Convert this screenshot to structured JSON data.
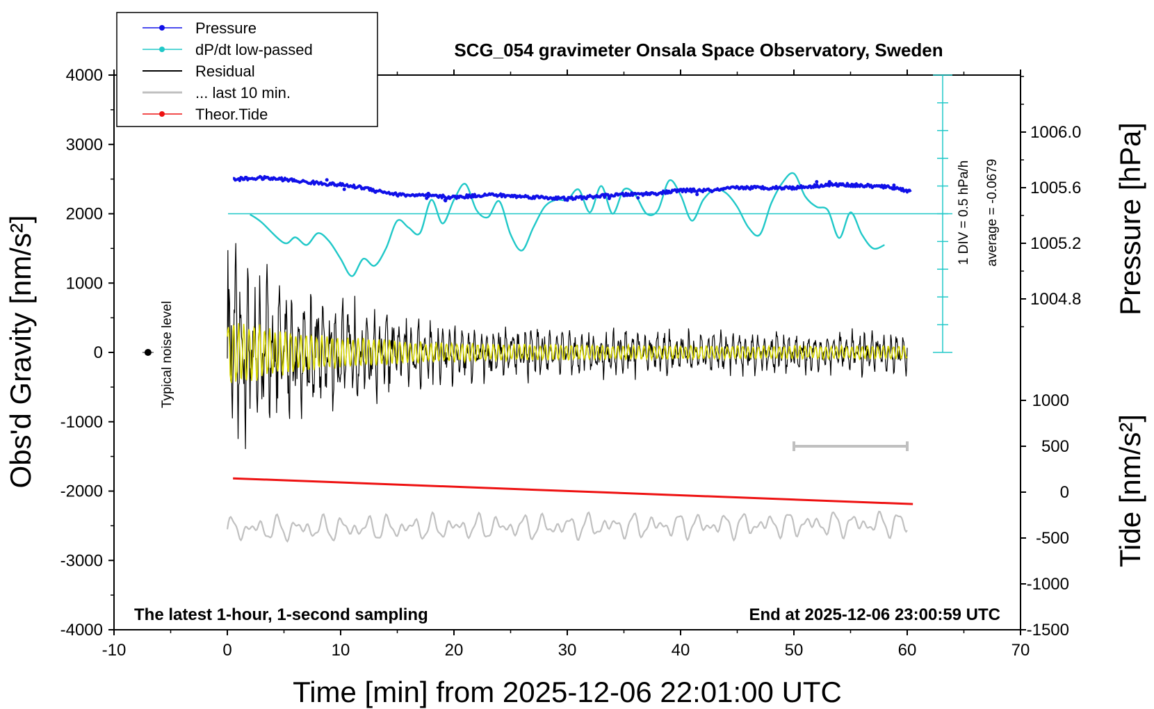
{
  "chart_data": {
    "type": "line",
    "title": "SCG_054 gravimeter Onsala Space Observatory, Sweden",
    "xlabel": "Time [min] from 2025-12-06 22:01:00 UTC",
    "ylabel_left": "Obs'd Gravity [nm/s²]",
    "ylabel_right_pressure": "Pressure [hPa]",
    "ylabel_right_tide": "Tide [nm/s²]",
    "xlim": [
      -10,
      70
    ],
    "ylim_gravity": [
      -4000,
      4000
    ],
    "ylim_pressure_visible": [
      1004.6,
      1006.4
    ],
    "ylim_tide": [
      -1500,
      1500
    ],
    "x_ticks": [
      "-10",
      "0",
      "10",
      "20",
      "30",
      "40",
      "50",
      "60",
      "70"
    ],
    "gravity_ticks": [
      "4000",
      "3000",
      "2000",
      "1000",
      "0",
      "-1000",
      "-2000",
      "-3000",
      "-4000"
    ],
    "pressure_ticks": [
      "1006.0",
      "1005.6",
      "1005.2",
      "1004.8"
    ],
    "tide_ticks": [
      "1000",
      "500",
      "0",
      "-500",
      "-1000",
      "-1500"
    ],
    "legend_position": "top-left",
    "legend": [
      {
        "name": "Pressure",
        "color": "#1010e8",
        "marker": true
      },
      {
        "name": "dP/dt low-passed",
        "color": "#20c8c8",
        "marker": true
      },
      {
        "name": "Residual",
        "color": "#000000",
        "marker": false
      },
      {
        "name": "... last 10 min.",
        "color": "#c0c0c0",
        "marker": false
      },
      {
        "name": "Theor.Tide",
        "color": "#ee1111",
        "marker": true
      }
    ],
    "annotations": {
      "bottom_left": "The latest 1-hour, 1-second sampling",
      "bottom_right": "End at 2025-12-06 23:00:59 UTC",
      "noise": "Typical noise level",
      "div_scale": "1 DIV = 0.5 hPa/h",
      "average": "average = -0.0679"
    },
    "noise_marker": {
      "x": -7,
      "y": 0
    },
    "scale_bar": {
      "x": [
        50,
        60
      ],
      "tide": 500
    },
    "dpdt_zero_line_gravity": 2000,
    "series": {
      "pressure_hpa": {
        "x": [
          0.5,
          3,
          5,
          7,
          10,
          12,
          15,
          18,
          20,
          23,
          25,
          28,
          30,
          33,
          35,
          38,
          40,
          43,
          45,
          48,
          50,
          53,
          55,
          57,
          59,
          60.3
        ],
        "y": [
          1005.66,
          1005.67,
          1005.66,
          1005.64,
          1005.62,
          1005.6,
          1005.55,
          1005.54,
          1005.53,
          1005.55,
          1005.54,
          1005.53,
          1005.52,
          1005.54,
          1005.55,
          1005.56,
          1005.58,
          1005.58,
          1005.6,
          1005.6,
          1005.6,
          1005.62,
          1005.62,
          1005.61,
          1005.6,
          1005.57
        ]
      },
      "dpdt_lowpassed_gravity_units": {
        "x": [
          2,
          3,
          5,
          6,
          7,
          8,
          9,
          10,
          11,
          12,
          13,
          14,
          15,
          16,
          17,
          18,
          19,
          20,
          21,
          22,
          23,
          24,
          25,
          26,
          27,
          28,
          29,
          30,
          31,
          32,
          33,
          34,
          35,
          36,
          37,
          38,
          39,
          40,
          41,
          42,
          43,
          44,
          45,
          46,
          47,
          48,
          49,
          50,
          51,
          52,
          53,
          54,
          55,
          56,
          57,
          58
        ],
        "y": [
          1990,
          1880,
          1580,
          1660,
          1550,
          1720,
          1600,
          1350,
          1100,
          1350,
          1250,
          1500,
          1900,
          1800,
          1720,
          2200,
          1860,
          2200,
          2430,
          2050,
          1950,
          2180,
          1700,
          1470,
          1800,
          2100,
          2200,
          2200,
          2350,
          2020,
          2400,
          2000,
          2350,
          2270,
          2000,
          2050,
          2480,
          2270,
          1900,
          2200,
          2350,
          2300,
          2100,
          1800,
          1700,
          2150,
          2450,
          2580,
          2250,
          2100,
          2050,
          1650,
          2020,
          1700,
          1500,
          1550
        ]
      },
      "theoretical_tide_nm_s2": {
        "x": [
          0.5,
          60.5
        ],
        "y": [
          150,
          -130
        ]
      },
      "residual_last_10min_gravity_units": {
        "x": [
          0,
          60
        ],
        "y": [
          -2550,
          -2470
        ],
        "note": "oscillating trace, amplitude about ±200"
      }
    }
  }
}
